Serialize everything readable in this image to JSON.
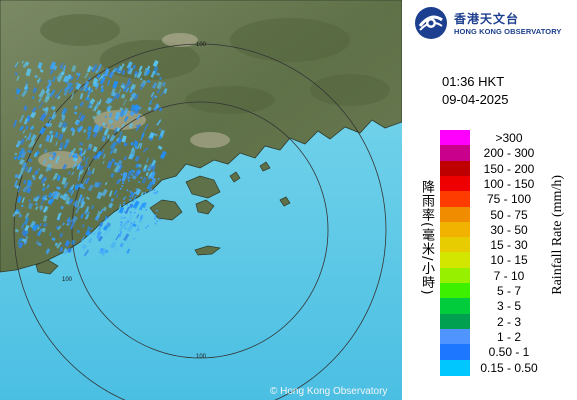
{
  "map": {
    "copyright": "© Hong Kong Observatory",
    "range_ring_labels": [
      "100",
      "100",
      "100"
    ]
  },
  "panel": {
    "logo_zh": "香港天文台",
    "logo_en": "HONG KONG OBSERVATORY",
    "time": "01:36 HKT",
    "date": "09-04-2025",
    "axis_label_zh": "降雨率(毫米/小時)",
    "axis_label_en": "Rainfall Rate (mm/h)"
  },
  "legend": [
    {
      "label": ">300",
      "color": "#ff00ff"
    },
    {
      "label": "200 - 300",
      "color": "#c8008c"
    },
    {
      "label": "150 - 200",
      "color": "#be0000"
    },
    {
      "label": "100 - 150",
      "color": "#ee0000"
    },
    {
      "label": "75 - 100",
      "color": "#ff3c00"
    },
    {
      "label": "50 - 75",
      "color": "#f08c00"
    },
    {
      "label": "30 - 50",
      "color": "#f2b300"
    },
    {
      "label": "15 - 30",
      "color": "#e6cc00"
    },
    {
      "label": "10 - 15",
      "color": "#d2e600"
    },
    {
      "label": "7 - 10",
      "color": "#96f000"
    },
    {
      "label": "5 - 7",
      "color": "#3cf000"
    },
    {
      "label": "3 - 5",
      "color": "#00cc3c"
    },
    {
      "label": "2 - 3",
      "color": "#00a050"
    },
    {
      "label": "1 - 2",
      "color": "#4f94ff"
    },
    {
      "label": "0.50 - 1",
      "color": "#1e78ff"
    },
    {
      "label": "0.15 - 0.50",
      "color": "#00c8ff"
    }
  ]
}
